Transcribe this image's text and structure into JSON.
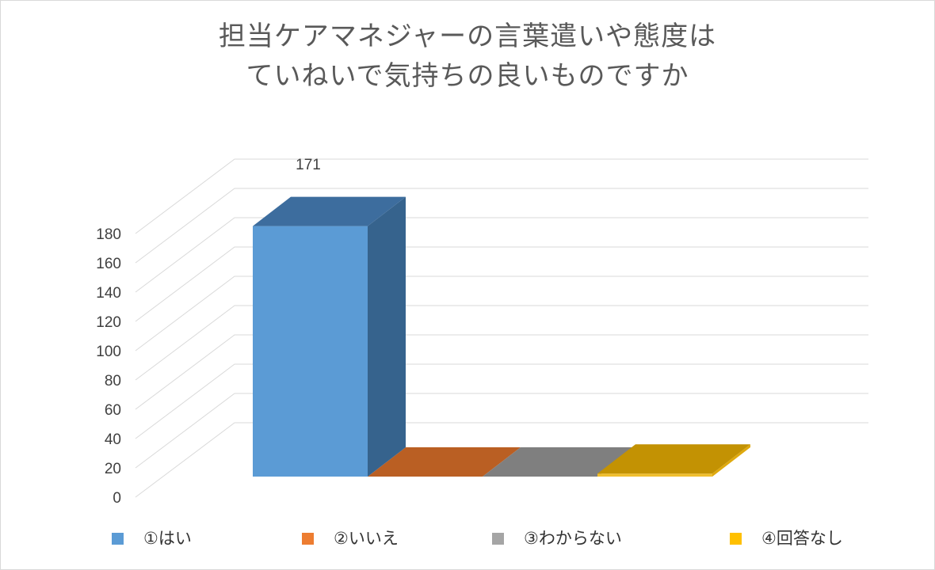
{
  "window": {
    "background": "#FFFFFF",
    "border_color": "#D9D9D9"
  },
  "title": {
    "line1": "担当ケアマネジャーの言葉遣いや態度は",
    "line2": "ていねいで気持ちの良いものですか",
    "color": "#595959"
  },
  "y_axis": {
    "tick_labels": [
      "0",
      "20",
      "40",
      "60",
      "80",
      "100",
      "120",
      "140",
      "160",
      "180"
    ],
    "min": 0,
    "max": 180,
    "step": 20,
    "text_color": "#404040"
  },
  "gridlines": {
    "color": "#D9D9D9"
  },
  "data_label": {
    "text": "171"
  },
  "legend": {
    "position": "bottom",
    "text_color": "#333333",
    "items": [
      {
        "label": "①はい",
        "color": "#5B9BD5"
      },
      {
        "label": "②いいえ",
        "color": "#ED7D31"
      },
      {
        "label": "③わからない",
        "color": "#A5A5A5"
      },
      {
        "label": "④回答なし",
        "color": "#FFC000"
      }
    ]
  },
  "chart_data": {
    "type": "bar",
    "projection": "3d",
    "title": "担当ケアマネジャーの言葉遣いや態度は ていねいで気持ちの良いものですか",
    "categories": [
      "①はい",
      "②いいえ",
      "③わからない",
      "④回答なし"
    ],
    "values": [
      171,
      0,
      0,
      2
    ],
    "visible_data_labels": [
      "171",
      null,
      null,
      null
    ],
    "xlabel": "",
    "ylabel": "",
    "ylim": [
      0,
      180
    ],
    "ytick_step": 20,
    "grid": true,
    "legend_position": "bottom",
    "series_colors": [
      "#5B9BD5",
      "#ED7D31",
      "#A5A5A5",
      "#FFC000"
    ],
    "series_faces": [
      {
        "front": "#5B9BD5",
        "top": "#3D6D9E",
        "side": "#36638D"
      },
      {
        "front": "#BA5F23",
        "top": "#BA5F23",
        "side": "#A04E1B"
      },
      {
        "front": "#7F7F7F",
        "top": "#7F7F7F",
        "side": "#6E6E6E"
      },
      {
        "front": "#F0BE2E",
        "top": "#C39203",
        "side": "#DFA90D"
      }
    ]
  }
}
